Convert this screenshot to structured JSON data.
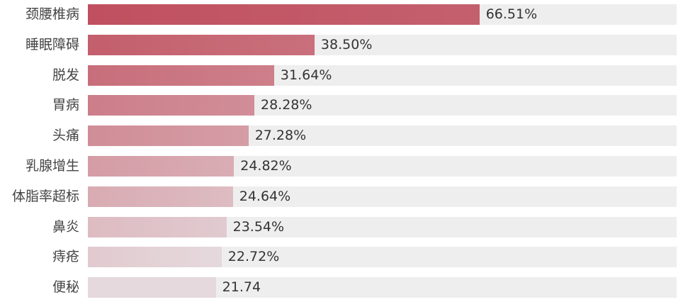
{
  "chart_data": {
    "type": "bar",
    "orientation": "horizontal",
    "categories": [
      "颈腰椎病",
      "睡眠障碍",
      "脱发",
      "胃病",
      "头痛",
      "乳腺增生",
      "体脂率超标",
      "鼻炎",
      "痔疮",
      "便秘"
    ],
    "values": [
      66.51,
      38.5,
      31.64,
      28.28,
      27.28,
      24.82,
      24.64,
      23.54,
      22.72,
      21.74
    ],
    "value_labels": [
      "66.51%",
      "38.50%",
      "31.64%",
      "28.28%",
      "27.28%",
      "24.82%",
      "24.64%",
      "23.54%",
      "22.72%",
      "21.74"
    ],
    "xlim": [
      0,
      100
    ],
    "title": "",
    "xlabel": "",
    "ylabel": "",
    "grid": false,
    "legend": "none",
    "colors": {
      "bar_start": "#c0505f",
      "bar_end": "#e5d9dd",
      "track": "#eeeeee"
    }
  }
}
